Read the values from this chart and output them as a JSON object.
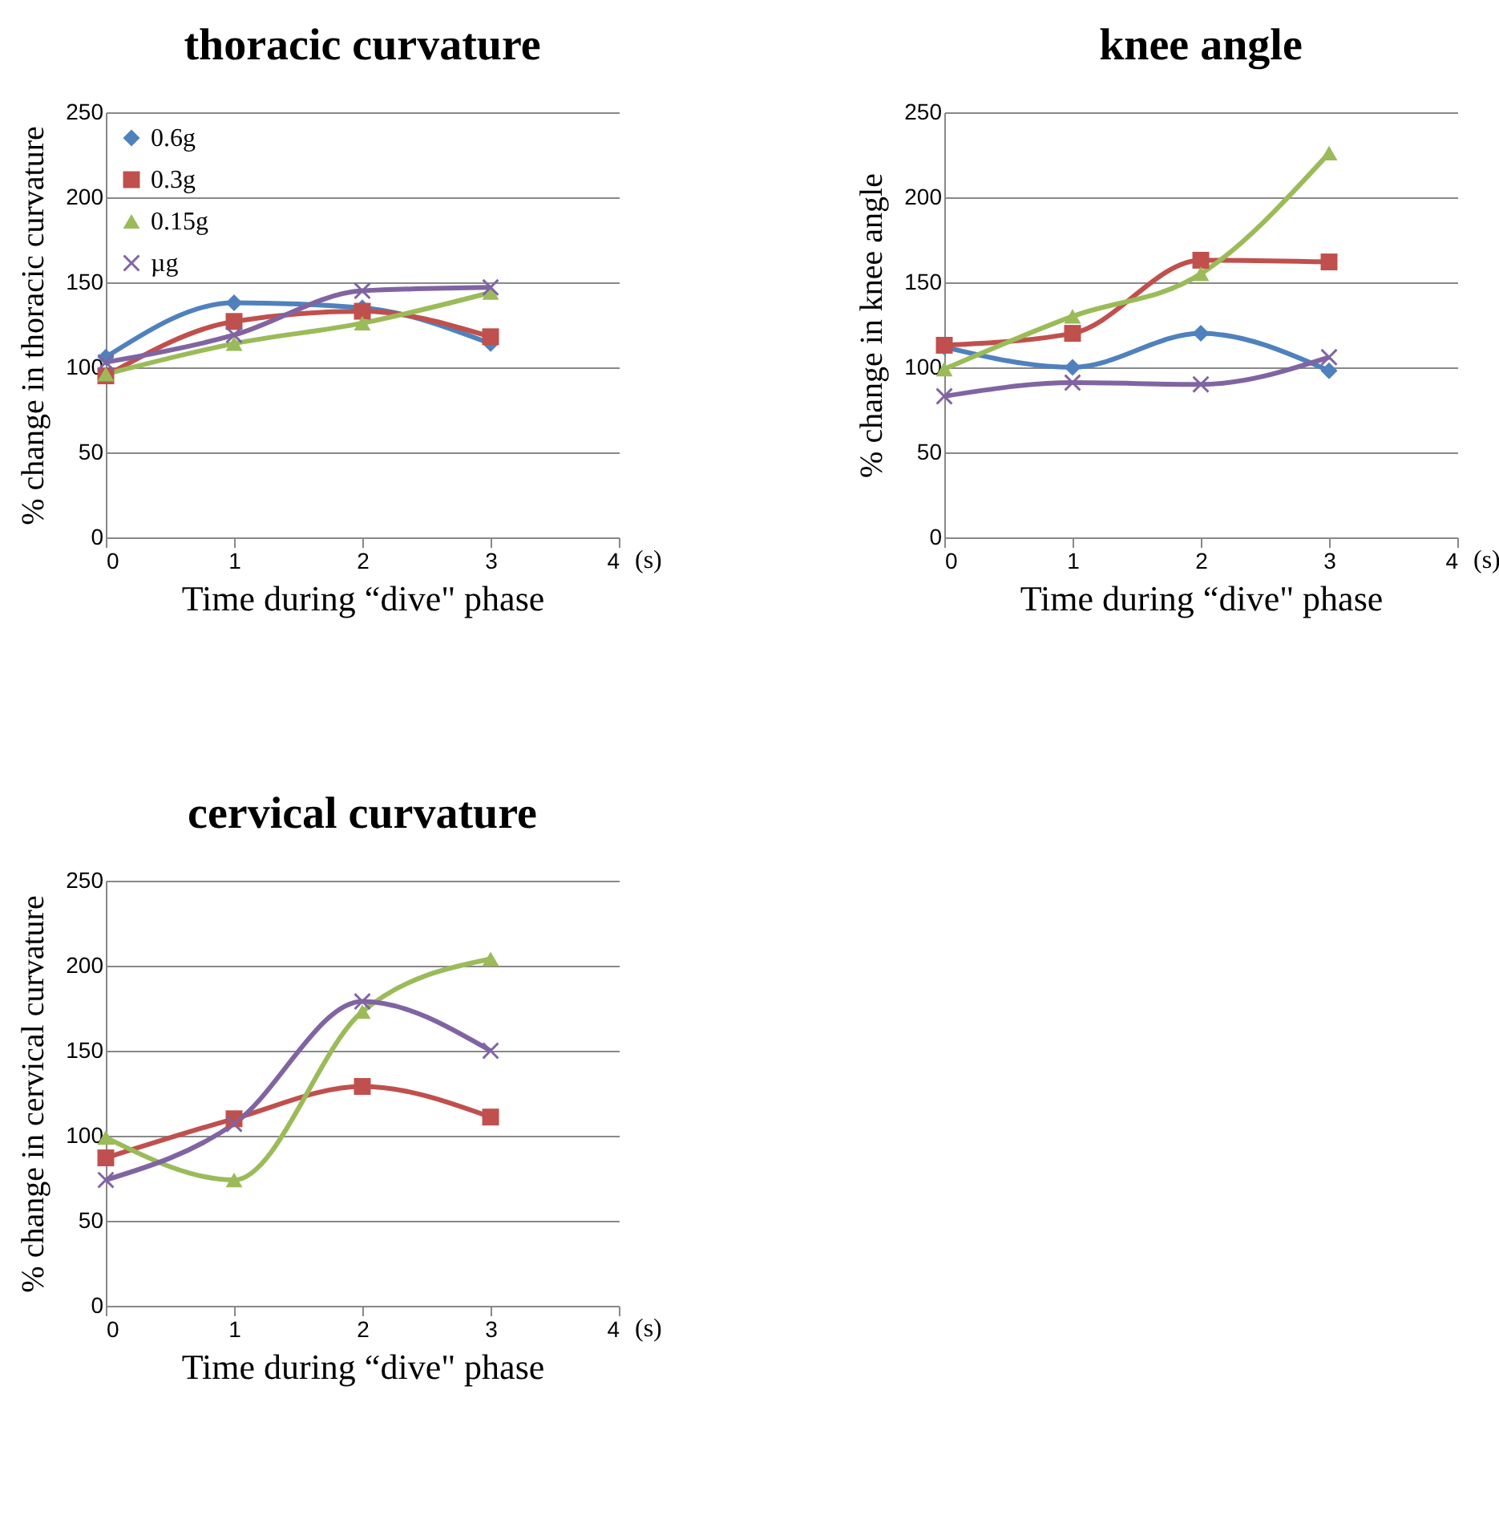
{
  "chart_data": [
    {
      "type": "line",
      "title": "thoracic curvature",
      "xlabel": "Time during “dive\" phase",
      "ylabel": "% change in thoracic curvature",
      "x": [
        0,
        1,
        2,
        3
      ],
      "xlim": [
        0,
        4
      ],
      "xticks": [
        0,
        1,
        2,
        3,
        4
      ],
      "ylim": [
        0,
        250
      ],
      "yticks": [
        0,
        50,
        100,
        150,
        200,
        250
      ],
      "grid": "y",
      "legend": "top left",
      "line_style": "solid",
      "annotations": [
        "(s)"
      ],
      "series": [
        {
          "name": "0.6g",
          "color": "#4f81bd",
          "marker": "diamond",
          "values": [
            106,
            138,
            135,
            114
          ]
        },
        {
          "name": "0.3g",
          "color": "#c0504d",
          "marker": "square",
          "values": [
            95,
            127,
            133,
            118
          ]
        },
        {
          "name": "0.15g",
          "color": "#9bbb59",
          "marker": "triangle",
          "values": [
            96,
            114,
            126,
            144
          ]
        },
        {
          "name": "µg",
          "color": "#8064a2",
          "marker": "cross",
          "values": [
            103,
            119,
            145,
            147
          ]
        }
      ]
    },
    {
      "type": "line",
      "title": "knee angle",
      "xlabel": "Time during “dive\" phase",
      "ylabel": "% change in knee angle",
      "x": [
        0,
        1,
        2,
        3
      ],
      "xlim": [
        0,
        4
      ],
      "xticks": [
        0,
        1,
        2,
        3,
        4
      ],
      "ylim": [
        0,
        250
      ],
      "yticks": [
        0,
        50,
        100,
        150,
        200,
        250
      ],
      "grid": "y",
      "line_style": "solid",
      "annotations": [
        "(s)"
      ],
      "series": [
        {
          "color": "#4f81bd",
          "marker": "diamond",
          "values": [
            112,
            100,
            120,
            98
          ]
        },
        {
          "color": "#c0504d",
          "marker": "square",
          "values": [
            113,
            120,
            163,
            162
          ]
        },
        {
          "color": "#9bbb59",
          "marker": "triangle",
          "values": [
            99,
            130,
            155,
            226
          ]
        },
        {
          "color": "#8064a2",
          "marker": "cross",
          "values": [
            83,
            91,
            90,
            106
          ]
        }
      ]
    },
    {
      "type": "line",
      "title": "cervical curvature",
      "xlabel": "Time during “dive\" phase",
      "ylabel": "% change in cervical curvature",
      "x": [
        0,
        1,
        2,
        3
      ],
      "xlim": [
        0,
        4
      ],
      "xticks": [
        0,
        1,
        2,
        3,
        4
      ],
      "ylim": [
        0,
        250
      ],
      "yticks": [
        0,
        50,
        100,
        150,
        200,
        250
      ],
      "grid": "y",
      "line_style": "solid",
      "annotations": [
        "(s)"
      ],
      "series": [
        {
          "color": "#c0504d",
          "marker": "square",
          "values": [
            87,
            110,
            129,
            111
          ]
        },
        {
          "color": "#9bbb59",
          "marker": "triangle",
          "values": [
            99,
            74,
            173,
            204
          ]
        },
        {
          "color": "#8064a2",
          "marker": "cross",
          "values": [
            74,
            107,
            179,
            150
          ]
        }
      ]
    }
  ]
}
